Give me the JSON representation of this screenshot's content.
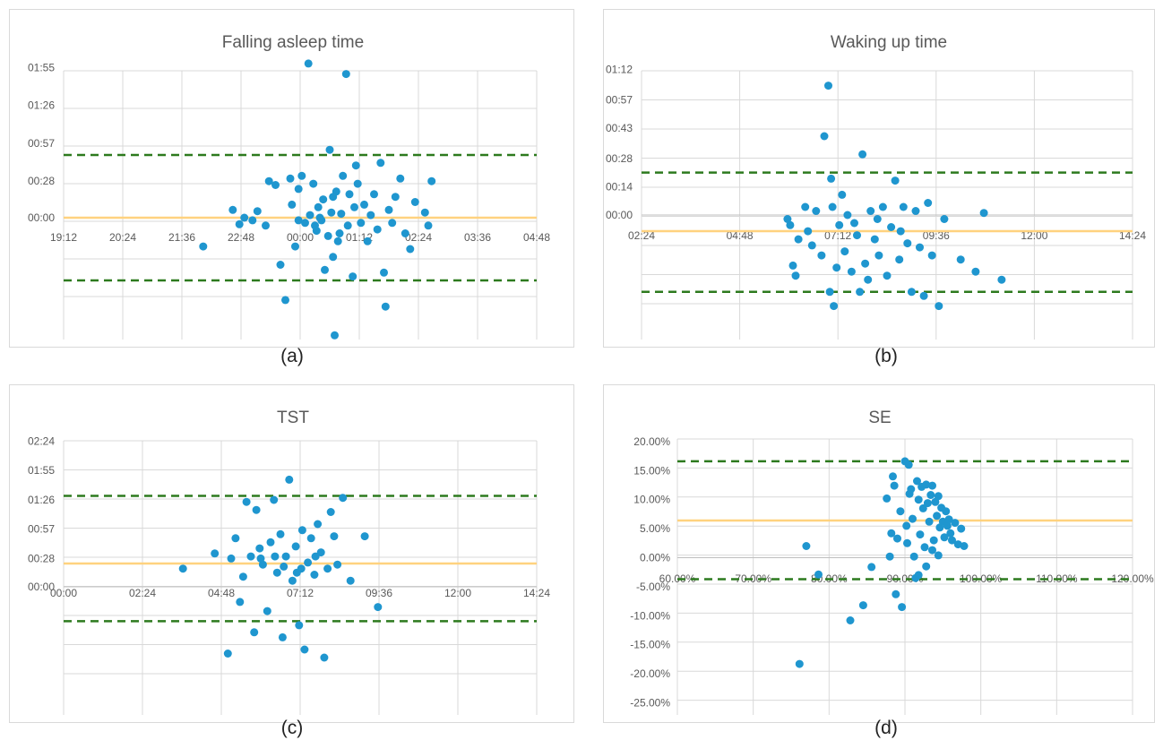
{
  "colors": {
    "points": "#1f96cf",
    "mean": "#ffd27f",
    "limits": "#2d7a1e",
    "grid": "#d9d9d9",
    "text": "#595959"
  },
  "chart_data": [
    {
      "type": "scatter",
      "caption": "(a)",
      "title": "Falling asleep time",
      "xlabel": "",
      "ylabel": "",
      "xlim": [
        "19:12",
        "04:48"
      ],
      "ylim": [
        "-02:00",
        "01:55"
      ],
      "x_ticks": [
        "19:12",
        "20:24",
        "21:36",
        "22:48",
        "00:00",
        "01:12",
        "02:24",
        "03:36",
        "04:48"
      ],
      "y_ticks": [
        "01:55",
        "01:26",
        "00:57",
        "00:28",
        "00:00"
      ],
      "mean_line": "00:00",
      "limit_lines": [
        "00:48",
        "-00:48"
      ],
      "points": [
        [
          "22:02",
          "-00:22"
        ],
        [
          "22:38",
          "00:06"
        ],
        [
          "22:46",
          "-00:05"
        ],
        [
          "22:52",
          "00:00"
        ],
        [
          "23:02",
          "-00:02"
        ],
        [
          "23:08",
          "00:05"
        ],
        [
          "23:18",
          "-00:06"
        ],
        [
          "23:30",
          "00:25"
        ],
        [
          "23:36",
          "-00:36"
        ],
        [
          "23:42",
          "-01:03"
        ],
        [
          "23:48",
          "00:30"
        ],
        [
          "23:50",
          "00:10"
        ],
        [
          "23:54",
          "-00:22"
        ],
        [
          "23:58",
          "-00:02"
        ],
        [
          "00:02",
          "00:32"
        ],
        [
          "00:06",
          "-00:04"
        ],
        [
          "00:10",
          "01:58"
        ],
        [
          "00:16",
          "00:26"
        ],
        [
          "00:20",
          "-00:10"
        ],
        [
          "00:24",
          "00:00"
        ],
        [
          "00:28",
          "00:14"
        ],
        [
          "00:30",
          "-00:40"
        ],
        [
          "00:34",
          "-00:14"
        ],
        [
          "00:36",
          "00:52"
        ],
        [
          "00:38",
          "00:04"
        ],
        [
          "00:40",
          "-00:30"
        ],
        [
          "00:42",
          "-01:30"
        ],
        [
          "00:44",
          "00:20"
        ],
        [
          "00:46",
          "-00:18"
        ],
        [
          "00:50",
          "00:03"
        ],
        [
          "00:52",
          "00:32"
        ],
        [
          "00:56",
          "1:50"
        ],
        [
          "00:58",
          "-00:06"
        ],
        [
          "01:00",
          "00:18"
        ],
        [
          "01:04",
          "-00:45"
        ],
        [
          "01:06",
          "00:08"
        ],
        [
          "01:10",
          "00:26"
        ],
        [
          "01:14",
          "-00:04"
        ],
        [
          "01:18",
          "00:10"
        ],
        [
          "01:22",
          "-00:18"
        ],
        [
          "01:26",
          "00:02"
        ],
        [
          "01:30",
          "00:18"
        ],
        [
          "01:34",
          "-00:09"
        ],
        [
          "01:38",
          "00:42"
        ],
        [
          "01:42",
          "-00:42"
        ],
        [
          "01:44",
          "-01:08"
        ],
        [
          "01:48",
          "00:06"
        ],
        [
          "01:52",
          "-00:04"
        ],
        [
          "01:56",
          "00:16"
        ],
        [
          "02:02",
          "00:30"
        ],
        [
          "02:08",
          "-00:12"
        ],
        [
          "02:14",
          "-00:24"
        ],
        [
          "02:20",
          "00:12"
        ],
        [
          "02:32",
          "00:04"
        ],
        [
          "02:36",
          "-00:06"
        ],
        [
          "02:40",
          "00:28"
        ],
        [
          "00:18",
          "-00:06"
        ],
        [
          "00:22",
          "00:08"
        ],
        [
          "00:26",
          "-00:02"
        ],
        [
          "00:12",
          "00:02"
        ],
        [
          "23:22",
          "00:28"
        ],
        [
          "23:58",
          "00:22"
        ],
        [
          "00:48",
          "-00:12"
        ],
        [
          "01:08",
          "00:40"
        ],
        [
          "00:40",
          "00:16"
        ]
      ]
    },
    {
      "type": "scatter",
      "caption": "(b)",
      "title": "Waking up time",
      "xlabel": "",
      "ylabel": "",
      "xlim": [
        "02:24",
        "14:24"
      ],
      "ylim": [
        "-00:45",
        "01:12"
      ],
      "x_ticks": [
        "02:24",
        "04:48",
        "07:12",
        "09:36",
        "12:00",
        "14:24"
      ],
      "y_ticks": [
        "01:12",
        "00:57",
        "00:43",
        "00:28",
        "00:14",
        "00:00"
      ],
      "mean_line": "-00:08",
      "limit_lines": [
        "00:21",
        "-00:38"
      ],
      "points": [
        [
          "05:58",
          "-00:02"
        ],
        [
          "06:02",
          "-00:05"
        ],
        [
          "06:06",
          "-00:25"
        ],
        [
          "06:10",
          "-00:30"
        ],
        [
          "06:14",
          "-00:12"
        ],
        [
          "06:24",
          "00:04"
        ],
        [
          "06:34",
          "-00:15"
        ],
        [
          "06:40",
          "00:02"
        ],
        [
          "06:48",
          "-00:20"
        ],
        [
          "06:52",
          "00:39"
        ],
        [
          "06:58",
          "01:04"
        ],
        [
          "07:00",
          "-00:38"
        ],
        [
          "07:02",
          "00:18"
        ],
        [
          "07:06",
          "-00:45"
        ],
        [
          "07:10",
          "-00:26"
        ],
        [
          "07:14",
          "-00:05"
        ],
        [
          "07:18",
          "00:10"
        ],
        [
          "07:22",
          "-00:18"
        ],
        [
          "07:26",
          "00:00"
        ],
        [
          "07:32",
          "-00:28"
        ],
        [
          "07:40",
          "-00:10"
        ],
        [
          "07:44",
          "-00:38"
        ],
        [
          "07:48",
          "00:30"
        ],
        [
          "07:52",
          "-00:24"
        ],
        [
          "07:56",
          "-00:32"
        ],
        [
          "08:00",
          "00:02"
        ],
        [
          "08:06",
          "-00:12"
        ],
        [
          "08:12",
          "-00:20"
        ],
        [
          "08:18",
          "00:04"
        ],
        [
          "08:24",
          "-00:30"
        ],
        [
          "08:30",
          "-00:06"
        ],
        [
          "08:36",
          "00:17"
        ],
        [
          "08:42",
          "-00:22"
        ],
        [
          "08:48",
          "00:04"
        ],
        [
          "08:54",
          "-00:14"
        ],
        [
          "09:00",
          "-00:38"
        ],
        [
          "09:06",
          "00:02"
        ],
        [
          "09:12",
          "-00:16"
        ],
        [
          "09:18",
          "-00:40"
        ],
        [
          "09:24",
          "00:06"
        ],
        [
          "09:30",
          "-00:20"
        ],
        [
          "09:40",
          "-00:45"
        ],
        [
          "09:48",
          "-00:02"
        ],
        [
          "10:12",
          "-00:22"
        ],
        [
          "10:34",
          "-00:28"
        ],
        [
          "10:46",
          "00:01"
        ],
        [
          "11:12",
          "-00:32"
        ],
        [
          "07:36",
          "-00:04"
        ],
        [
          "08:10",
          "-00:02"
        ],
        [
          "06:28",
          "-00:08"
        ],
        [
          "07:04",
          "00:04"
        ],
        [
          "08:44",
          "-00:08"
        ]
      ]
    },
    {
      "type": "scatter",
      "caption": "(c)",
      "title": "TST",
      "xlabel": "",
      "ylabel": "",
      "xlim": [
        "00:00",
        "14:24"
      ],
      "ylim": [
        "-01:10",
        "02:24"
      ],
      "x_ticks": [
        "00:00",
        "02:24",
        "04:48",
        "07:12",
        "09:36",
        "12:00",
        "14:24"
      ],
      "y_ticks": [
        "02:24",
        "01:55",
        "01:26",
        "00:57",
        "00:28",
        "00:00"
      ],
      "mean_line": "00:23",
      "limit_lines": [
        "01:30",
        "-00:34"
      ],
      "points": [
        [
          "03:38",
          "00:18"
        ],
        [
          "04:36",
          "00:33"
        ],
        [
          "05:00",
          "-01:06"
        ],
        [
          "05:06",
          "00:28"
        ],
        [
          "05:14",
          "00:48"
        ],
        [
          "05:22",
          "-00:15"
        ],
        [
          "05:28",
          "00:10"
        ],
        [
          "05:34",
          "01:24"
        ],
        [
          "05:42",
          "00:30"
        ],
        [
          "05:48",
          "-00:45"
        ],
        [
          "05:52",
          "01:16"
        ],
        [
          "05:58",
          "00:38"
        ],
        [
          "06:04",
          "00:22"
        ],
        [
          "06:12",
          "-00:24"
        ],
        [
          "06:18",
          "00:44"
        ],
        [
          "06:24",
          "01:26"
        ],
        [
          "06:30",
          "00:14"
        ],
        [
          "06:36",
          "00:52"
        ],
        [
          "06:40",
          "-00:50"
        ],
        [
          "06:46",
          "00:30"
        ],
        [
          "06:52",
          "01:46"
        ],
        [
          "06:58",
          "00:06"
        ],
        [
          "07:04",
          "00:40"
        ],
        [
          "07:10",
          "-00:38"
        ],
        [
          "07:16",
          "00:56"
        ],
        [
          "07:20",
          "-01:02"
        ],
        [
          "07:26",
          "00:24"
        ],
        [
          "07:32",
          "00:48"
        ],
        [
          "07:38",
          "00:12"
        ],
        [
          "07:44",
          "01:02"
        ],
        [
          "07:50",
          "00:34"
        ],
        [
          "07:56",
          "-01:10"
        ],
        [
          "08:02",
          "00:18"
        ],
        [
          "08:08",
          "01:14"
        ],
        [
          "08:14",
          "00:50"
        ],
        [
          "08:20",
          "00:22"
        ],
        [
          "08:30",
          "01:28"
        ],
        [
          "08:44",
          "00:06"
        ],
        [
          "09:10",
          "00:50"
        ],
        [
          "09:34",
          "-00:20"
        ],
        [
          "06:00",
          "00:28"
        ],
        [
          "06:42",
          "00:20"
        ],
        [
          "07:06",
          "00:14"
        ],
        [
          "07:40",
          "00:30"
        ],
        [
          "06:26",
          "00:30"
        ],
        [
          "07:14",
          "00:18"
        ]
      ]
    },
    {
      "type": "scatter",
      "caption": "(d)",
      "title": "SE",
      "xlabel": "",
      "ylabel": "",
      "xlim": [
        0.6,
        1.2
      ],
      "ylim": [
        -0.25,
        0.2
      ],
      "x_ticks": [
        "60.00%",
        "70.00%",
        "80.00%",
        "90.00%",
        "100.00%",
        "110.00%",
        "120.00%"
      ],
      "y_ticks": [
        "20.00%",
        "15.00%",
        "10.00%",
        "5.00%",
        "0.00%",
        "-5.00%",
        "-10.00%",
        "-15.00%",
        "-20.00%",
        "-25.00%"
      ],
      "mean_line": 0.064,
      "limit_lines": [
        0.166,
        -0.037
      ],
      "points": [
        [
          0.761,
          -0.183
        ],
        [
          0.77,
          0.02
        ],
        [
          0.786,
          -0.029
        ],
        [
          0.828,
          -0.108
        ],
        [
          0.845,
          -0.082
        ],
        [
          0.856,
          -0.016
        ],
        [
          0.876,
          0.102
        ],
        [
          0.88,
          0.002
        ],
        [
          0.882,
          0.042
        ],
        [
          0.884,
          0.14
        ],
        [
          0.886,
          0.124
        ],
        [
          0.888,
          -0.063
        ],
        [
          0.89,
          0.033
        ],
        [
          0.894,
          0.08
        ],
        [
          0.896,
          -0.085
        ],
        [
          0.9,
          0.166
        ],
        [
          0.902,
          0.055
        ],
        [
          0.905,
          0.16
        ],
        [
          0.906,
          0.11
        ],
        [
          0.908,
          0.118
        ],
        [
          0.91,
          0.067
        ],
        [
          0.912,
          0.002
        ],
        [
          0.914,
          -0.035
        ],
        [
          0.916,
          0.132
        ],
        [
          0.918,
          0.1
        ],
        [
          0.92,
          0.04
        ],
        [
          0.922,
          0.122
        ],
        [
          0.924,
          0.085
        ],
        [
          0.926,
          0.018
        ],
        [
          0.928,
          0.126
        ],
        [
          0.93,
          0.094
        ],
        [
          0.932,
          0.062
        ],
        [
          0.934,
          0.108
        ],
        [
          0.936,
          0.124
        ],
        [
          0.938,
          0.03
        ],
        [
          0.94,
          0.096
        ],
        [
          0.942,
          0.072
        ],
        [
          0.944,
          0.106
        ],
        [
          0.946,
          0.052
        ],
        [
          0.948,
          0.086
        ],
        [
          0.95,
          0.062
        ],
        [
          0.952,
          0.035
        ],
        [
          0.954,
          0.08
        ],
        [
          0.956,
          0.055
        ],
        [
          0.958,
          0.066
        ],
        [
          0.96,
          0.042
        ],
        [
          0.962,
          0.03
        ],
        [
          0.966,
          0.06
        ],
        [
          0.97,
          0.023
        ],
        [
          0.974,
          0.05
        ],
        [
          0.978,
          0.02
        ],
        [
          0.903,
          0.025
        ],
        [
          0.936,
          0.013
        ],
        [
          0.944,
          0.004
        ],
        [
          0.928,
          -0.015
        ],
        [
          0.918,
          -0.03
        ]
      ]
    }
  ]
}
